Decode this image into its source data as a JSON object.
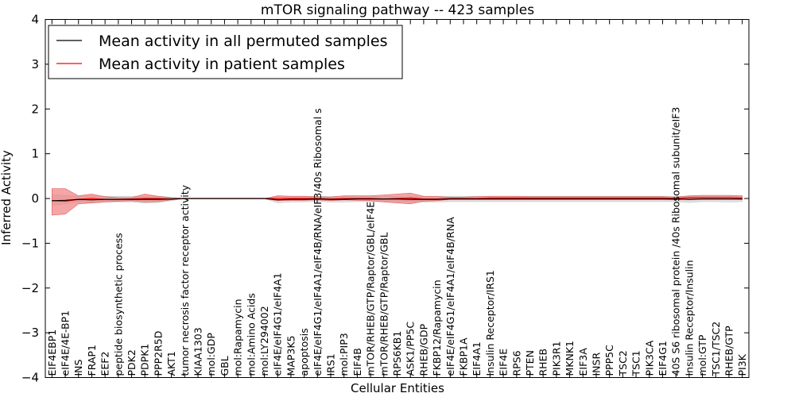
{
  "chart_data": {
    "type": "line",
    "title": "mTOR signaling pathway -- 423 samples",
    "xlabel": "Cellular Entities",
    "ylabel": "Inferred Activity",
    "ylim": [
      -4,
      4
    ],
    "yticks": [
      -4,
      -3,
      -2,
      -1,
      0,
      1,
      2,
      3,
      4
    ],
    "ytick_labels": [
      "−4",
      "−3",
      "−2",
      "−1",
      "0",
      "1",
      "2",
      "3",
      "4"
    ],
    "legend_position": "top-left",
    "categories": [
      "EIF4EBP1",
      "eIF4E/4E-BP1",
      "INS",
      "FRAP1",
      "EEF2",
      "peptide biosynthetic process",
      "PDK2",
      "PDPK1",
      "PPP2R5D",
      "AKT1",
      "tumor necrosis factor receptor activity",
      "KIAA1303",
      "mol:GDP",
      "GBL",
      "mol:Rapamycin",
      "mol:Amino Acids",
      "mol:LY294002",
      "eIF4E/eIF4G1/eIF4A1",
      "MAP3K5",
      "apoptosis",
      "eIF4E/eIF4G1/eIF4A1/eIF4B/RNA/eIF3/40s Ribosomal s",
      "IRS1",
      "mol:PIP3",
      "EIF4B",
      "mTOR/RHEB/GTP/Raptor/GBL/eIF4E",
      "mTOR/RHEB/GTP/Raptor/GBL",
      "RPS6KB1",
      "ASK1/PP5C",
      "RHEB/GDP",
      "FKBP12/Rapamycin",
      "eIF4E/eIF4G1/eIF4A1/eIF4B/RNA",
      "FKBP1A",
      "EIF4A1",
      "Insulin Receptor/IRS1",
      "EIF4E",
      "RPS6",
      "PTEN",
      "RHEB",
      "PIK3R1",
      "MKNK1",
      "EIF3A",
      "INSR",
      "PPP5C",
      "TSC2",
      "TSC1",
      "PIK3CA",
      "EIF4G1",
      "40S S6 ribosomal protein /40s Ribosomal subunit/eIF3",
      "Insulin Receptor/Insulin",
      "mol:GTP",
      "TSC1/TSC2",
      "RHEB/GTP",
      "PI3K"
    ],
    "series": [
      {
        "name": "Mean activity in all permuted samples",
        "color": "#000000",
        "band_color": "#d9d9d9",
        "values": [
          -0.05,
          -0.04,
          -0.02,
          -0.03,
          -0.02,
          -0.02,
          -0.02,
          -0.02,
          -0.02,
          -0.01,
          0,
          0,
          0,
          0,
          0,
          0,
          0,
          -0.03,
          -0.02,
          -0.02,
          -0.01,
          -0.02,
          -0.02,
          -0.01,
          -0.01,
          -0.01,
          -0.01,
          -0.02,
          -0.02,
          -0.02,
          -0.01,
          -0.01,
          -0.01,
          -0.01,
          -0.01,
          -0.01,
          -0.01,
          -0.01,
          -0.01,
          -0.01,
          -0.01,
          -0.01,
          -0.01,
          -0.01,
          -0.01,
          -0.01,
          -0.01,
          -0.01,
          -0.02,
          -0.01,
          -0.01,
          -0.01,
          -0.01
        ],
        "lower": [
          -0.15,
          -0.12,
          -0.08,
          -0.1,
          -0.08,
          -0.08,
          -0.08,
          -0.1,
          -0.09,
          -0.05,
          0,
          0,
          0,
          0,
          0,
          0,
          0,
          -0.1,
          -0.08,
          -0.08,
          -0.06,
          -0.08,
          -0.08,
          -0.07,
          -0.07,
          -0.07,
          -0.07,
          -0.08,
          -0.08,
          -0.08,
          -0.07,
          -0.07,
          -0.07,
          -0.07,
          -0.07,
          -0.07,
          -0.07,
          -0.07,
          -0.07,
          -0.07,
          -0.07,
          -0.07,
          -0.07,
          -0.07,
          -0.07,
          -0.07,
          -0.07,
          -0.07,
          -0.09,
          -0.07,
          -0.07,
          -0.08,
          -0.07
        ],
        "upper": [
          0.08,
          0.07,
          0.05,
          0.06,
          0.05,
          0.05,
          0.05,
          0.05,
          0.05,
          0.03,
          0,
          0,
          0,
          0,
          0,
          0,
          0,
          0.05,
          0.05,
          0.05,
          0.04,
          0.05,
          0.05,
          0.05,
          0.05,
          0.05,
          0.05,
          0.05,
          0.05,
          0.05,
          0.05,
          0.05,
          0.05,
          0.05,
          0.05,
          0.05,
          0.05,
          0.05,
          0.05,
          0.05,
          0.05,
          0.05,
          0.05,
          0.05,
          0.05,
          0.05,
          0.05,
          0.05,
          0.05,
          0.05,
          0.05,
          0.05,
          0.05
        ]
      },
      {
        "name": "Mean activity in patient samples",
        "color": "#ff0000",
        "band_color": "#f08080",
        "values": [
          -0.05,
          -0.06,
          -0.02,
          0.0,
          -0.02,
          -0.02,
          -0.01,
          0.0,
          0.0,
          -0.01,
          0,
          0,
          0,
          0,
          0,
          0,
          0,
          0.0,
          0.0,
          0.0,
          0.0,
          -0.01,
          0.0,
          0.0,
          0.0,
          -0.01,
          0.0,
          0.01,
          -0.01,
          -0.01,
          0.0,
          0.0,
          0.0,
          0.01,
          0.01,
          0.01,
          0.01,
          0.01,
          0.01,
          0.01,
          0.01,
          0.01,
          0.01,
          0.01,
          0.01,
          0.01,
          0.01,
          0.0,
          0.02,
          0.02,
          0.02,
          0.02,
          0.01
        ],
        "lower": [
          -0.37,
          -0.35,
          -0.12,
          -0.1,
          -0.08,
          -0.06,
          -0.05,
          -0.08,
          -0.07,
          -0.03,
          0,
          0,
          0,
          0,
          0,
          0,
          0,
          -0.05,
          -0.04,
          -0.04,
          -0.03,
          -0.05,
          -0.03,
          -0.04,
          -0.05,
          -0.08,
          -0.1,
          -0.12,
          -0.06,
          -0.05,
          -0.02,
          -0.02,
          -0.02,
          -0.02,
          -0.02,
          -0.02,
          -0.02,
          -0.02,
          -0.02,
          -0.02,
          -0.02,
          -0.02,
          -0.02,
          -0.02,
          -0.02,
          -0.02,
          -0.02,
          -0.03,
          -0.01,
          -0.01,
          -0.01,
          -0.01,
          -0.02
        ],
        "upper": [
          0.22,
          0.22,
          0.06,
          0.1,
          0.04,
          0.02,
          0.02,
          0.1,
          0.05,
          0.02,
          0,
          0,
          0,
          0,
          0,
          0,
          0,
          0.06,
          0.05,
          0.05,
          0.04,
          0.03,
          0.06,
          0.06,
          0.06,
          0.08,
          0.1,
          0.12,
          0.05,
          0.04,
          0.03,
          0.03,
          0.04,
          0.05,
          0.05,
          0.05,
          0.04,
          0.04,
          0.04,
          0.04,
          0.04,
          0.04,
          0.04,
          0.04,
          0.04,
          0.04,
          0.04,
          0.03,
          0.06,
          0.07,
          0.07,
          0.07,
          0.06
        ]
      }
    ]
  }
}
